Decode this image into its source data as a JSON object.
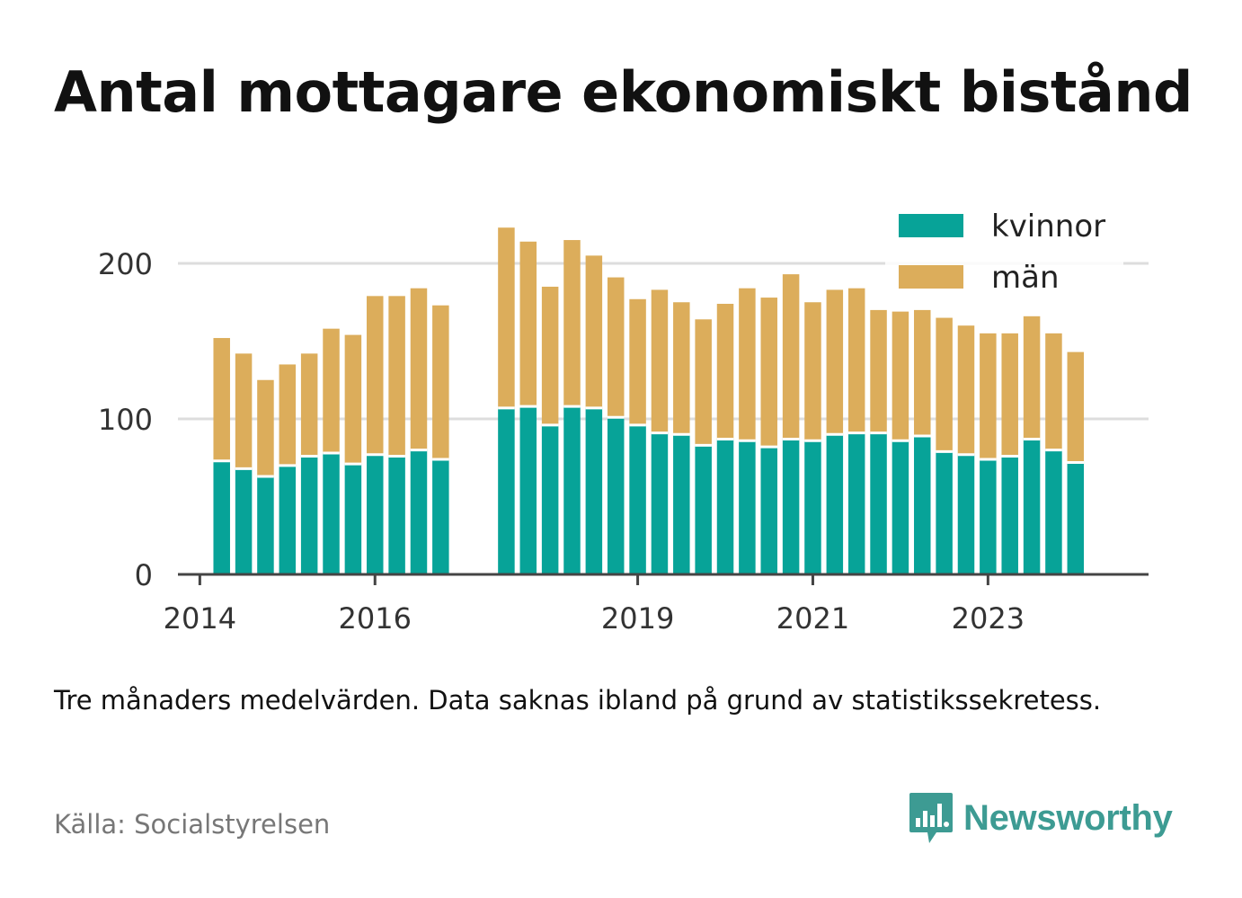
{
  "title": "Antal mottagare ekonomiskt bistånd",
  "note": "Tre månaders medelvärden. Data saknas ibland på grund av statistikssekretess.",
  "source": "Källa: Socialstyrelsen",
  "brand": {
    "name": "Newsworthy",
    "icon": "newsworthy-logo-icon"
  },
  "colors": {
    "kvinnor": "#07a398",
    "man": "#dcad5b",
    "grid": "#dddddd",
    "axis": "#444444",
    "brand": "#3d9b93"
  },
  "chart_data": {
    "type": "bar",
    "stacked": true,
    "title": "Antal mottagare ekonomiskt bistånd",
    "xlabel": "",
    "ylabel": "",
    "ylim": [
      0,
      230
    ],
    "yticks": [
      0,
      100,
      200
    ],
    "xlim": [
      "2013-10",
      "2024-11"
    ],
    "xticks": [
      {
        "x": "2014-01",
        "label": "2014"
      },
      {
        "x": "2016-01",
        "label": "2016"
      },
      {
        "x": "2019-01",
        "label": "2019"
      },
      {
        "x": "2021-01",
        "label": "2021"
      },
      {
        "x": "2023-01",
        "label": "2023"
      }
    ],
    "grid": true,
    "legend_position": "top-right",
    "x": [
      "2014-04",
      "2014-07",
      "2014-10",
      "2015-01",
      "2015-04",
      "2015-07",
      "2015-10",
      "2016-01",
      "2016-04",
      "2016-07",
      "2016-10",
      "2017-07",
      "2017-10",
      "2018-01",
      "2018-04",
      "2018-07",
      "2018-10",
      "2019-01",
      "2019-04",
      "2019-07",
      "2019-10",
      "2020-01",
      "2020-04",
      "2020-07",
      "2020-10",
      "2021-01",
      "2021-04",
      "2021-07",
      "2021-10",
      "2022-01",
      "2022-04",
      "2022-07",
      "2022-10",
      "2023-01",
      "2023-04",
      "2023-07",
      "2023-10",
      "2024-01"
    ],
    "series": [
      {
        "name": "kvinnor",
        "color": "#07a398",
        "values": [
          73,
          68,
          63,
          70,
          76,
          78,
          71,
          77,
          76,
          80,
          74,
          107,
          108,
          96,
          108,
          107,
          101,
          96,
          91,
          90,
          83,
          87,
          86,
          82,
          87,
          86,
          90,
          91,
          91,
          86,
          89,
          79,
          77,
          74,
          76,
          87,
          80,
          72
        ]
      },
      {
        "name": "män",
        "color": "#dcad5b",
        "values": [
          79,
          74,
          62,
          65,
          66,
          80,
          83,
          102,
          103,
          104,
          99,
          116,
          106,
          89,
          107,
          98,
          90,
          81,
          92,
          85,
          81,
          87,
          98,
          96,
          106,
          89,
          93,
          93,
          79,
          83,
          81,
          86,
          83,
          81,
          79,
          79,
          75,
          71
        ]
      }
    ]
  }
}
